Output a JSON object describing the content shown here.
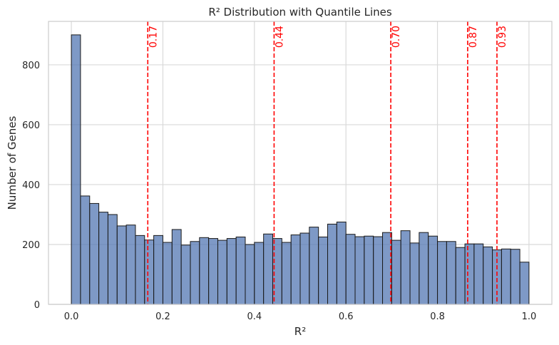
{
  "chart_data": {
    "type": "bar",
    "title": "R² Distribution with Quantile Lines",
    "xlabel": "R²",
    "ylabel": "Number of Genes",
    "xlim": [
      -0.05,
      1.05
    ],
    "ylim": [
      0,
      945
    ],
    "xticks": [
      0.0,
      0.2,
      0.4,
      0.6,
      0.8,
      1.0
    ],
    "xtick_labels": [
      "0.0",
      "0.2",
      "0.4",
      "0.6",
      "0.8",
      "1.0"
    ],
    "yticks": [
      0,
      200,
      400,
      600,
      800
    ],
    "ytick_labels": [
      "0",
      "200",
      "400",
      "600",
      "800"
    ],
    "grid": true,
    "bar_color": "#4c72b0",
    "bin_edges_start": 0.0,
    "bin_width": 0.02,
    "values": [
      900,
      362,
      337,
      308,
      300,
      262,
      265,
      230,
      215,
      230,
      207,
      250,
      198,
      210,
      223,
      220,
      214,
      220,
      225,
      200,
      207,
      235,
      220,
      207,
      232,
      238,
      258,
      225,
      268,
      275,
      234,
      226,
      228,
      226,
      240,
      214,
      246,
      205,
      240,
      228,
      210,
      210,
      190,
      202,
      202,
      192,
      182,
      185,
      184,
      141
    ],
    "quantile_lines": [
      {
        "x": 0.167,
        "label": "0.17"
      },
      {
        "x": 0.443,
        "label": "0.44"
      },
      {
        "x": 0.698,
        "label": "0.70"
      },
      {
        "x": 0.866,
        "label": "0.87"
      },
      {
        "x": 0.93,
        "label": "0.93"
      }
    ],
    "quantile_color": "#ff0000"
  }
}
